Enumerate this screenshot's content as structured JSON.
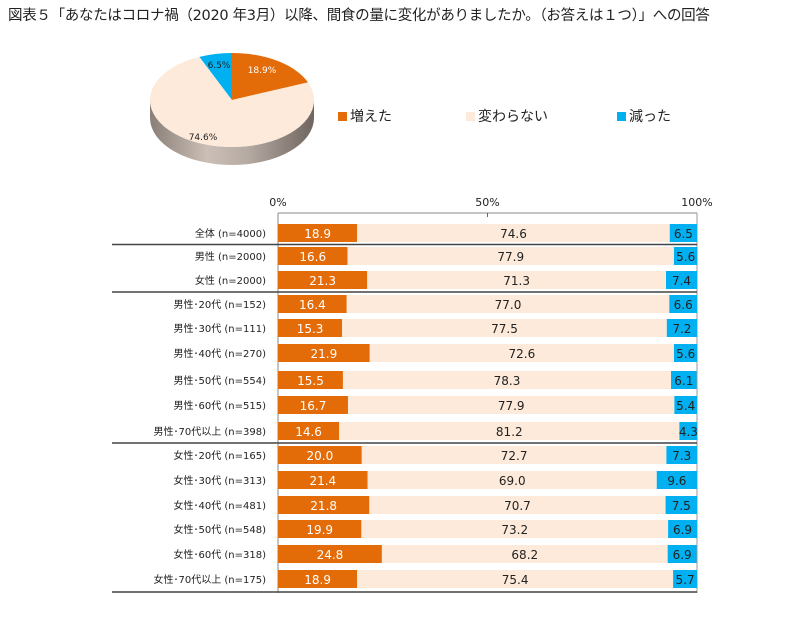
{
  "title": "図表５「あなたはコロナ禍（2020 年3月）以降、間食の量に変化がありましたか。（お答えは１つ）」への回答",
  "chart_data": [
    {
      "type": "pie",
      "title": "",
      "slices": [
        {
          "name": "増えた",
          "value": 18.9,
          "label": "18.9%",
          "color": "#E36C09"
        },
        {
          "name": "変わらない",
          "value": 74.6,
          "label": "74.6%",
          "color": "#FDEADA"
        },
        {
          "name": "減った",
          "value": 6.5,
          "label": "6.5%",
          "color": "#00B0F0"
        }
      ],
      "legend": {
        "placement": "right",
        "entries": [
          {
            "name": "増えた",
            "color": "#E36C09"
          },
          {
            "name": "変わらない",
            "color": "#FDEADA"
          },
          {
            "name": "減った",
            "color": "#00B0F0"
          }
        ]
      }
    },
    {
      "type": "bar",
      "orientation": "horizontal",
      "stacked": "100%",
      "xlim": [
        0,
        100
      ],
      "xticks": [
        "0%",
        "50%",
        "100%"
      ],
      "categories": [
        "全体 (n=4000)",
        "男性 (n=2000)",
        "女性 (n=2000)",
        "男性･20代 (n=152)",
        "男性･30代 (n=111)",
        "男性･40代 (n=270)",
        "男性･50代 (n=554)",
        "男性･60代 (n=515)",
        "男性･70代以上 (n=398)",
        "女性･20代 (n=165)",
        "女性･30代 (n=313)",
        "女性･40代 (n=481)",
        "女性･50代 (n=548)",
        "女性･60代 (n=318)",
        "女性･70代以上 (n=175)"
      ],
      "group_separators_after": [
        0,
        2,
        8,
        14
      ],
      "series": [
        {
          "name": "増えた",
          "color": "#E36C09",
          "label_color": "#ffffff",
          "values": [
            18.9,
            16.6,
            21.3,
            16.4,
            15.3,
            21.9,
            15.5,
            16.7,
            14.6,
            20.0,
            21.4,
            21.8,
            19.9,
            24.8,
            18.9
          ]
        },
        {
          "name": "変わらない",
          "color": "#FDEADA",
          "label_color": "#222222",
          "values": [
            74.6,
            77.9,
            71.3,
            77.0,
            77.5,
            72.6,
            78.3,
            77.9,
            81.2,
            72.7,
            69.0,
            70.7,
            73.2,
            68.2,
            75.4
          ]
        },
        {
          "name": "減った",
          "color": "#00B0F0",
          "label_color": "#222222",
          "values": [
            6.5,
            5.6,
            7.4,
            6.6,
            7.2,
            5.6,
            6.1,
            5.4,
            4.3,
            7.3,
            9.6,
            7.5,
            6.9,
            6.9,
            5.7
          ]
        }
      ]
    }
  ]
}
